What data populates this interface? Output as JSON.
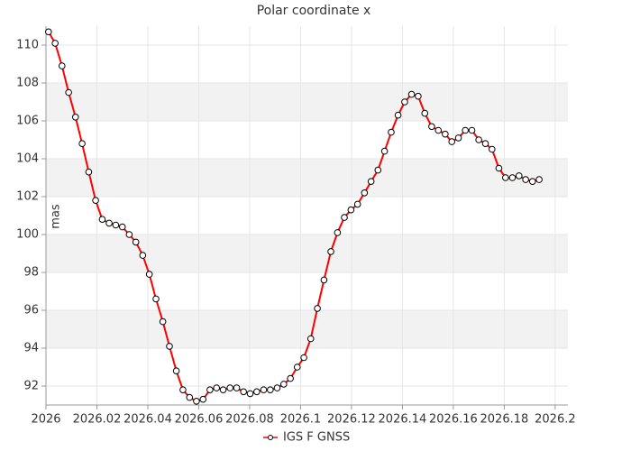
{
  "chart_data": {
    "type": "line",
    "title": "Polar coordinate x",
    "y_label": "mas",
    "x": [
      2026.001,
      2026.0036,
      2026.0063,
      2026.0089,
      2026.0116,
      2026.0142,
      2026.0168,
      2026.0195,
      2026.0221,
      2026.0248,
      2026.0274,
      2026.03,
      2026.0327,
      2026.0353,
      2026.038,
      2026.0406,
      2026.0432,
      2026.0459,
      2026.0485,
      2026.0512,
      2026.0538,
      2026.0564,
      2026.0591,
      2026.0617,
      2026.0644,
      2026.067,
      2026.0696,
      2026.0723,
      2026.0749,
      2026.0776,
      2026.0802,
      2026.0828,
      2026.0855,
      2026.0881,
      2026.0908,
      2026.0934,
      2026.096,
      2026.0987,
      2026.1013,
      2026.104,
      2026.1066,
      2026.1092,
      2026.1119,
      2026.1145,
      2026.1172,
      2026.1198,
      2026.1224,
      2026.1251,
      2026.1277,
      2026.1304,
      2026.133,
      2026.1356,
      2026.1383,
      2026.1409,
      2026.1436,
      2026.1462,
      2026.1488,
      2026.1515,
      2026.1541,
      2026.1568,
      2026.1594,
      2026.162,
      2026.1647,
      2026.1673,
      2026.17,
      2026.1726,
      2026.1752,
      2026.1779,
      2026.1805,
      2026.1832,
      2026.1858,
      2026.1884,
      2026.1911,
      2026.1937
    ],
    "series": [
      {
        "name": "IGS F GNSS",
        "color": "#ff0000",
        "values": [
          110.7,
          110.1,
          108.9,
          107.5,
          106.2,
          104.8,
          103.3,
          101.8,
          100.8,
          100.6,
          100.5,
          100.4,
          100.0,
          99.6,
          98.9,
          97.9,
          96.6,
          95.4,
          94.1,
          92.8,
          91.8,
          91.4,
          91.2,
          91.3,
          91.8,
          91.9,
          91.8,
          91.9,
          91.9,
          91.7,
          91.6,
          91.7,
          91.8,
          91.8,
          91.9,
          92.1,
          92.4,
          93.0,
          93.5,
          94.5,
          96.1,
          97.6,
          99.1,
          100.1,
          100.9,
          101.3,
          101.6,
          102.2,
          102.8,
          103.4,
          104.4,
          105.4,
          106.3,
          107.0,
          107.4,
          107.3,
          106.4,
          105.7,
          105.5,
          105.3,
          104.9,
          105.1,
          105.5,
          105.5,
          105.0,
          104.8,
          104.5,
          103.5,
          103.0,
          103.0,
          103.1,
          102.9,
          102.8,
          102.9
        ]
      }
    ],
    "xlim": [
      2026,
      2026.205
    ],
    "xticks": [
      2026,
      2026.02,
      2026.04,
      2026.06,
      2026.08,
      2026.1,
      2026.12,
      2026.14,
      2026.16,
      2026.18,
      2026.2
    ],
    "ylim": [
      91,
      111
    ],
    "yticks": [
      92,
      94,
      96,
      98,
      100,
      102,
      104,
      106,
      108,
      110
    ],
    "grid": true,
    "bands": true,
    "legend": "bottom"
  }
}
